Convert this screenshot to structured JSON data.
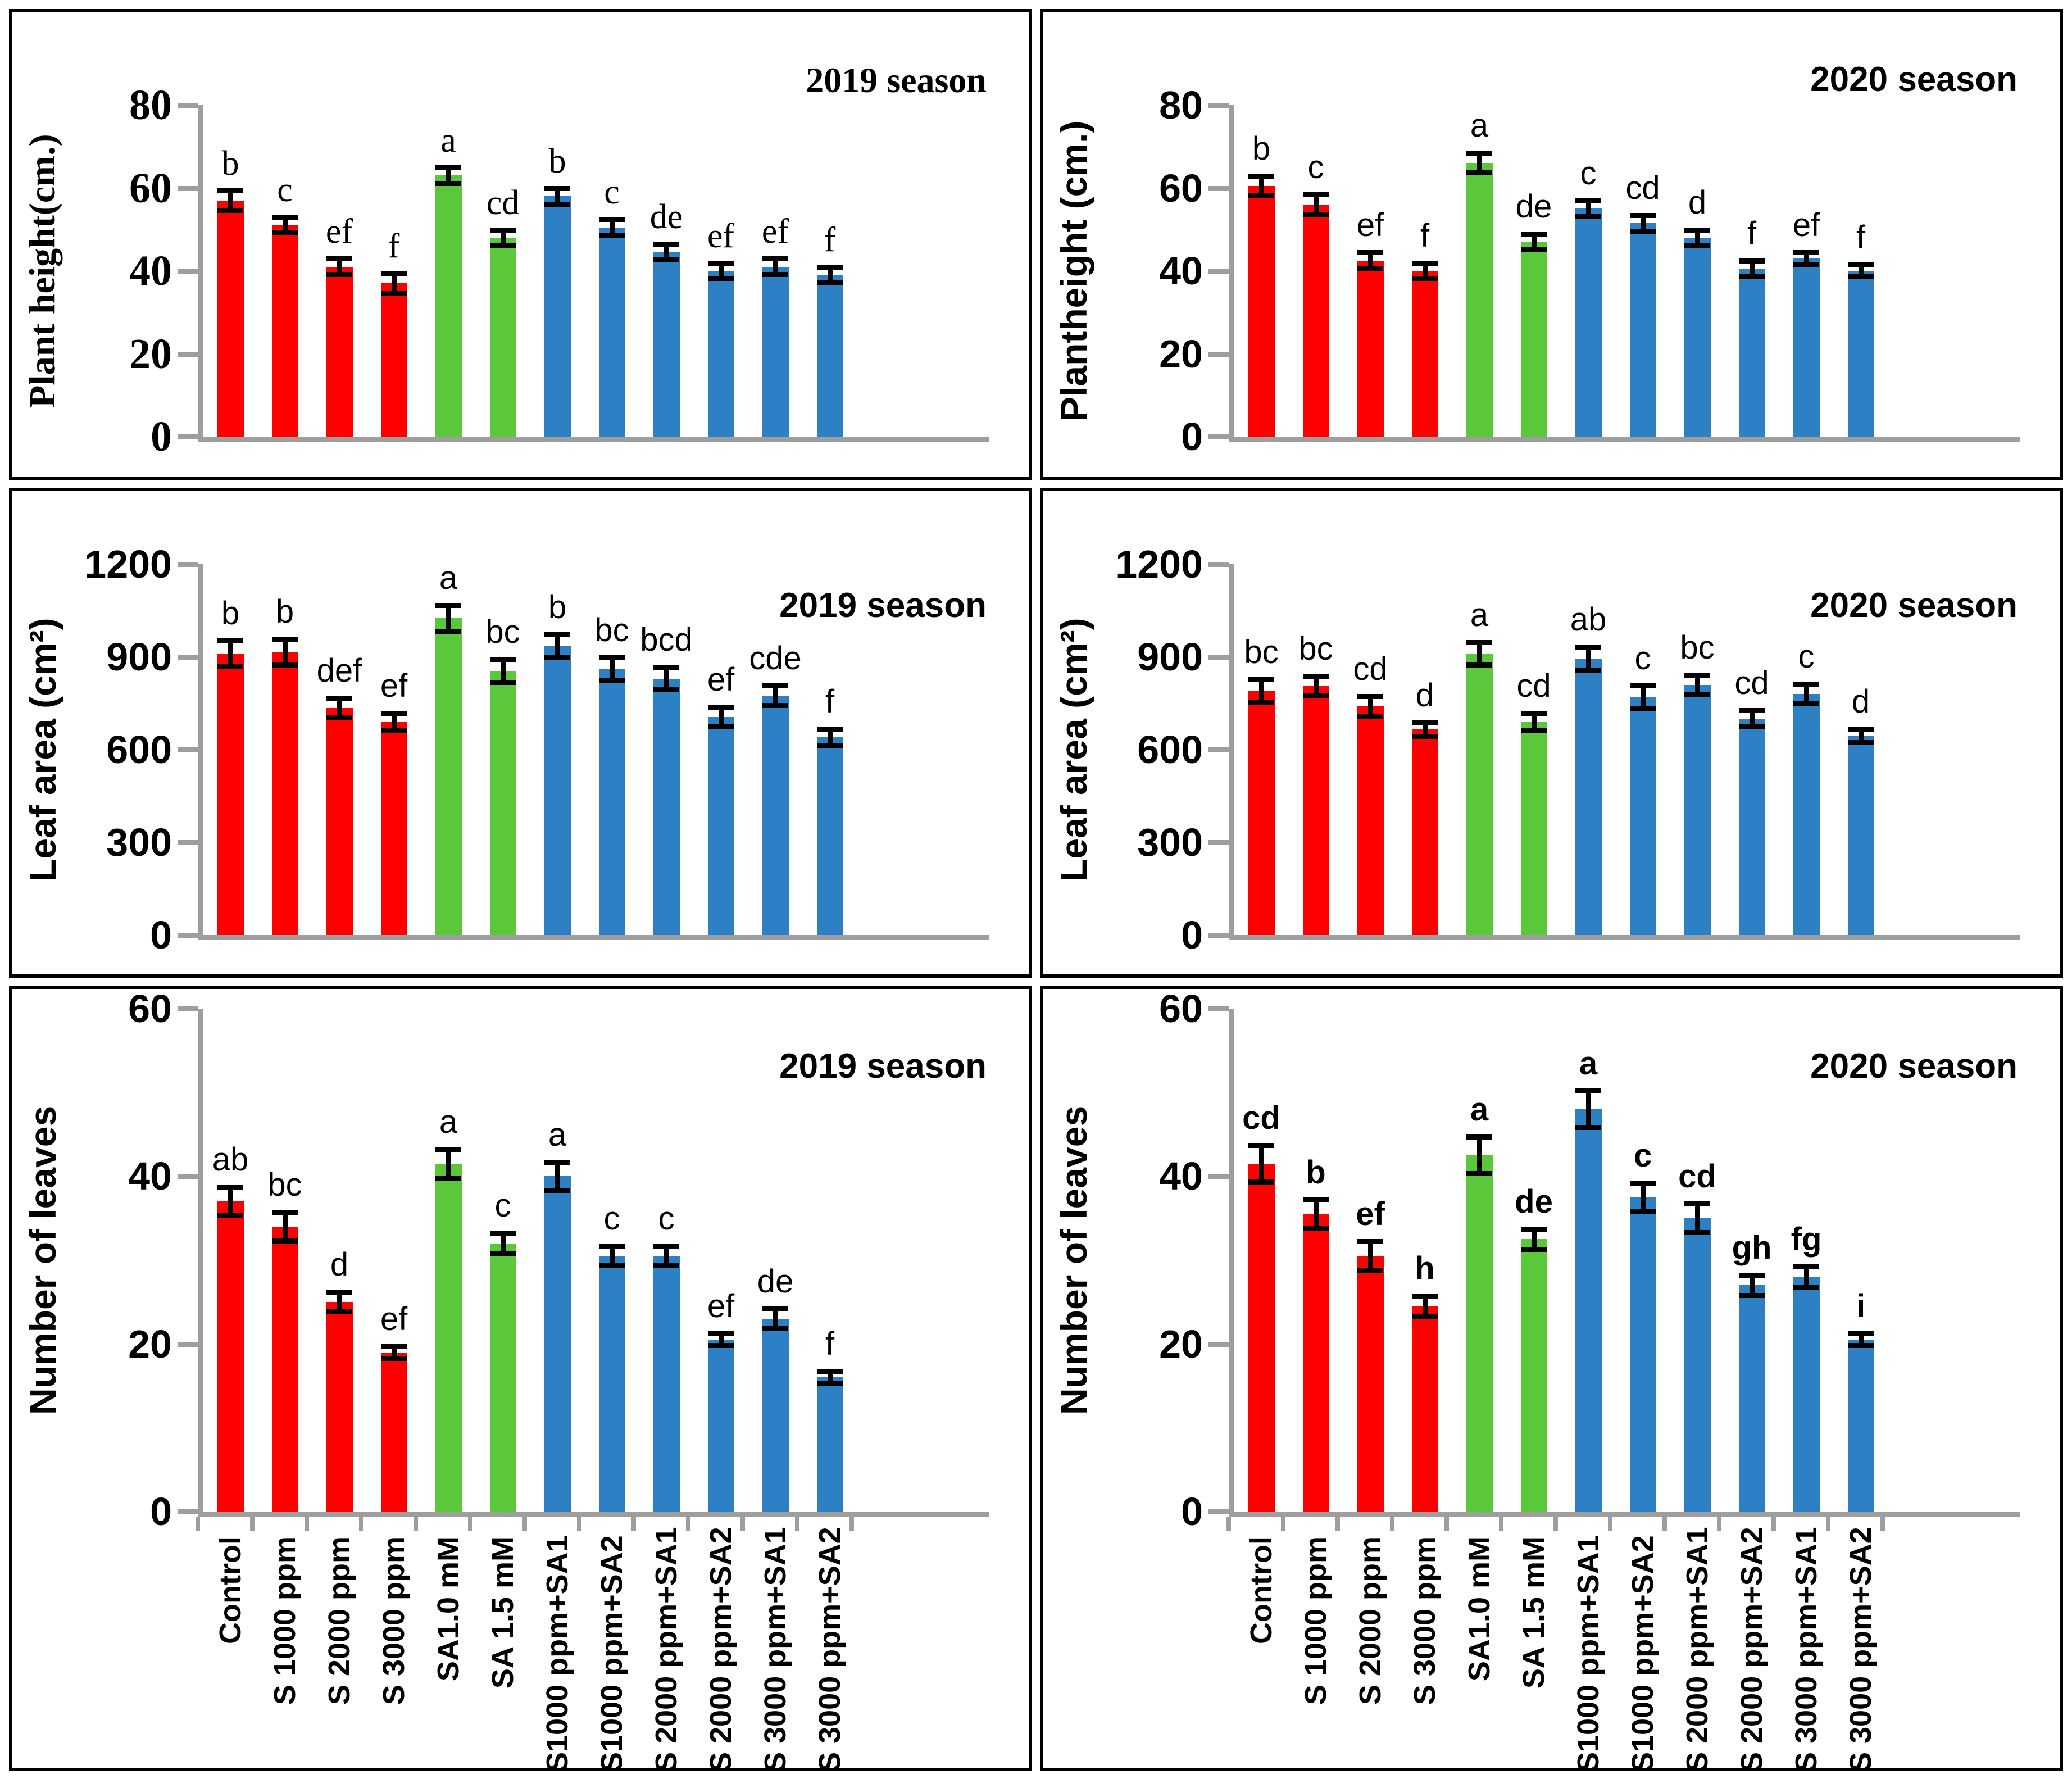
{
  "figure": {
    "description": "Six bar-chart panels: plant height, leaf area and number of leaves for 2019 and 2020 seasons under sulfur (S) and salicylic acid (SA) treatments",
    "colors": {
      "sulfur_red": "#FF0000",
      "salicylic_green": "#5BC83C",
      "combined_blue": "#2E80C4",
      "axis_gray": "#9E9E9E",
      "error_bar_black": "#000000",
      "panel_border": "#000000",
      "background": "#FFFFFF"
    }
  },
  "chart_data": {
    "type": "bar",
    "grid": false,
    "legend": "none",
    "categories": [
      "Control",
      "S 1000 ppm",
      "S 2000 ppm",
      "S 3000 ppm",
      "SA1.0 mM",
      "SA 1.5 mM",
      "S1000 ppm+SA1",
      "S1000 ppm+SA2",
      "S 2000 ppm+SA1",
      "S 2000 ppm+SA2",
      "S 3000 ppm+SA1",
      "S 3000 ppm+SA2"
    ],
    "bar_color_keys": [
      "sulfur_red",
      "sulfur_red",
      "sulfur_red",
      "sulfur_red",
      "salicylic_green",
      "salicylic_green",
      "combined_blue",
      "combined_blue",
      "combined_blue",
      "combined_blue",
      "combined_blue",
      "combined_blue"
    ],
    "panels": [
      {
        "id": "plant-height-2019",
        "title": "2019 season",
        "ylabel": "Plant height(cm.)",
        "font": "serif",
        "ylim": [
          0,
          80
        ],
        "yticks": [
          80,
          60,
          40,
          20,
          0
        ],
        "values": [
          57,
          51,
          41,
          37,
          63,
          48,
          58,
          50.5,
          44.5,
          40,
          41,
          39
        ],
        "errors": [
          3,
          2.5,
          2.5,
          3,
          2.5,
          2.5,
          2.5,
          2.5,
          2.5,
          2.5,
          2.5,
          2.5
        ],
        "letters": [
          "b",
          "c",
          "ef",
          "f",
          "a",
          "cd",
          "b",
          "c",
          "de",
          "ef",
          "ef",
          "f"
        ],
        "letters_bold": false,
        "show_x_labels": false
      },
      {
        "id": "plant-height-2020",
        "title": "2020 season",
        "ylabel": "Plantheight (cm.)",
        "font": "sans",
        "ylim": [
          0,
          80
        ],
        "yticks": [
          80,
          60,
          40,
          20,
          0
        ],
        "values": [
          60.5,
          56,
          42.5,
          40,
          66,
          47,
          55,
          51.5,
          48,
          40.5,
          43,
          40
        ],
        "errors": [
          3,
          3,
          2.5,
          2.5,
          3,
          2.5,
          2.5,
          2.5,
          2.5,
          2.5,
          2,
          2
        ],
        "letters": [
          "b",
          "c",
          "ef",
          "f",
          "a",
          "de",
          "c",
          "cd",
          "d",
          "f",
          "ef",
          "f"
        ],
        "letters_bold": false,
        "show_x_labels": false
      },
      {
        "id": "leaf-area-2019",
        "title": "2019 season",
        "ylabel": "Leaf area (cm²)",
        "font": "sans",
        "ylim": [
          0,
          1200
        ],
        "yticks": [
          1200,
          900,
          600,
          300,
          0
        ],
        "values": [
          910,
          915,
          735,
          690,
          1025,
          855,
          935,
          860,
          830,
          705,
          775,
          640
        ],
        "errors": [
          50,
          50,
          40,
          35,
          50,
          45,
          45,
          45,
          45,
          40,
          40,
          35
        ],
        "letters": [
          "b",
          "b",
          "def",
          "ef",
          "a",
          "bc",
          "b",
          "bc",
          "bcd",
          "ef",
          "cde",
          "f"
        ],
        "letters_bold": false,
        "show_x_labels": false
      },
      {
        "id": "leaf-area-2020",
        "title": "2020 season",
        "ylabel": "Leaf area (cm²)",
        "font": "sans",
        "ylim": [
          0,
          1200
        ],
        "yticks": [
          1200,
          900,
          600,
          300,
          0
        ],
        "values": [
          790,
          805,
          740,
          665,
          910,
          690,
          895,
          770,
          810,
          700,
          780,
          645
        ],
        "errors": [
          45,
          40,
          40,
          30,
          45,
          35,
          45,
          45,
          40,
          35,
          40,
          30
        ],
        "letters": [
          "bc",
          "bc",
          "cd",
          "d",
          "a",
          "cd",
          "ab",
          "c",
          "bc",
          "cd",
          "c",
          "d"
        ],
        "letters_bold": false,
        "show_x_labels": false
      },
      {
        "id": "number-of-leaves-2019",
        "title": "2019 season",
        "ylabel": "Number of leaves",
        "font": "sans",
        "ylim": [
          0,
          60
        ],
        "yticks": [
          60,
          40,
          20,
          0
        ],
        "values": [
          37,
          34,
          25,
          19,
          41.5,
          32,
          40,
          30.5,
          30.5,
          20.5,
          23,
          16
        ],
        "errors": [
          2,
          2,
          1.5,
          1,
          2,
          1.5,
          2,
          1.5,
          1.5,
          1,
          1.5,
          1
        ],
        "letters": [
          "ab",
          "bc",
          "d",
          "ef",
          "a",
          "c",
          "a",
          "c",
          "c",
          "ef",
          "de",
          "f"
        ],
        "letters_bold": false,
        "show_x_labels": true
      },
      {
        "id": "number-of-leaves-2020",
        "title": "2020 season",
        "ylabel": "Number of leaves",
        "font": "sans",
        "ylim": [
          0,
          60
        ],
        "yticks": [
          60,
          40,
          20,
          0
        ],
        "values": [
          41.5,
          35.5,
          30.5,
          24.5,
          42.5,
          32.5,
          48,
          37.5,
          35,
          27,
          28,
          20.5
        ],
        "errors": [
          2.5,
          2,
          2,
          1.5,
          2.5,
          1.5,
          2.5,
          2,
          2,
          1.5,
          1.5,
          1
        ],
        "letters": [
          "cd",
          "b",
          "ef",
          "h",
          "a",
          "de",
          "a",
          "c",
          "cd",
          "gh",
          "fg",
          "i"
        ],
        "letters_bold": true,
        "show_x_labels": true
      }
    ]
  }
}
